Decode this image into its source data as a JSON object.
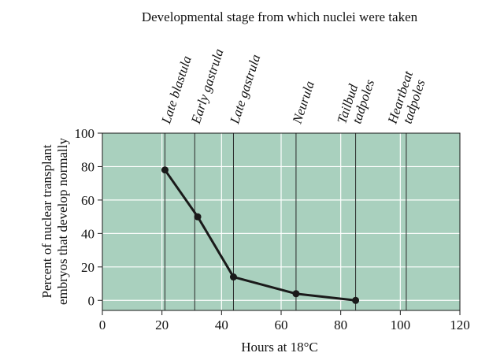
{
  "chart_data": {
    "type": "line",
    "title": "Developmental stage from which nuclei were taken",
    "xlabel": "Hours at 18°C",
    "ylabel_lines": [
      "Percent of nuclear transplant",
      "embryos that develop normally"
    ],
    "xlim": [
      0,
      120
    ],
    "ylim": [
      -6,
      100
    ],
    "x_ticks": [
      0,
      20,
      40,
      60,
      80,
      100,
      120
    ],
    "y_ticks": [
      0,
      20,
      40,
      60,
      80,
      100
    ],
    "grid": true,
    "background_color": "#a9d0be",
    "grid_color": "#ffffff",
    "line_color": "#1a1a1a",
    "stages": [
      {
        "label_lines": [
          "Late blastula"
        ],
        "x": 21
      },
      {
        "label_lines": [
          "Early gastrula"
        ],
        "x": 31
      },
      {
        "label_lines": [
          "Late gastrula"
        ],
        "x": 44
      },
      {
        "label_lines": [
          "Neurula"
        ],
        "x": 65
      },
      {
        "label_lines": [
          "Tailbud",
          "tadpoles"
        ],
        "x": 85
      },
      {
        "label_lines": [
          "Heartbeat",
          "tadpoles"
        ],
        "x": 102
      }
    ],
    "series": [
      {
        "x": [
          21,
          32,
          44,
          65,
          85
        ],
        "y": [
          78,
          50,
          14,
          4,
          0
        ]
      }
    ]
  }
}
